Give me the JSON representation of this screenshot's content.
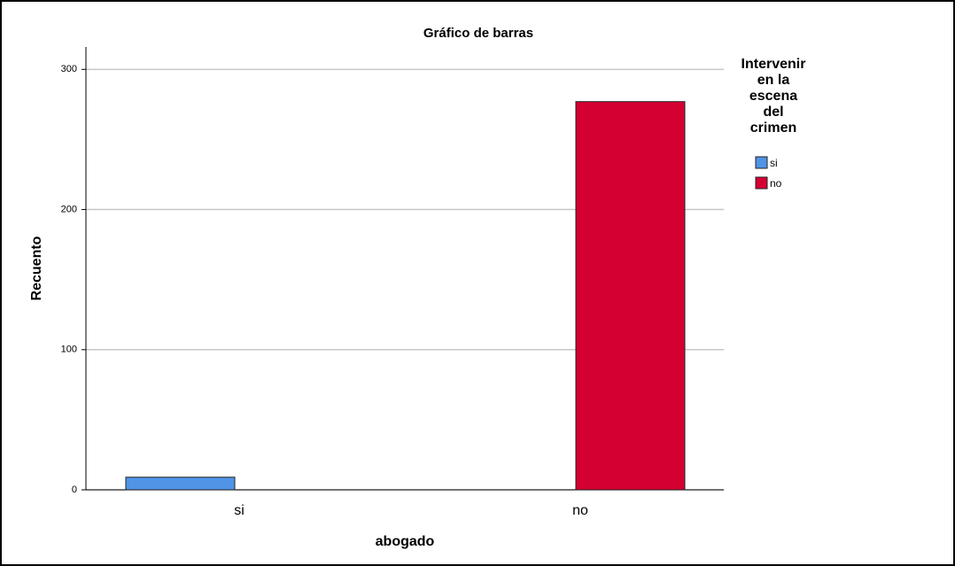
{
  "chart_data": {
    "type": "bar",
    "title": "Gráfico de barras",
    "x_label": "abogado",
    "y_label": "Recuento",
    "categories": [
      "si",
      "no"
    ],
    "legend_title": [
      "Intervenir",
      "en la",
      "escena",
      "del",
      "crimen"
    ],
    "series": [
      {
        "name": "si",
        "color": "#5094e6",
        "values": [
          9,
          0
        ]
      },
      {
        "name": "no",
        "color": "#d50032",
        "values": [
          0,
          277
        ]
      }
    ],
    "ylim": [
      0,
      316
    ],
    "yticks": [
      0,
      100,
      200,
      300
    ],
    "grid": true,
    "legend": "right"
  }
}
